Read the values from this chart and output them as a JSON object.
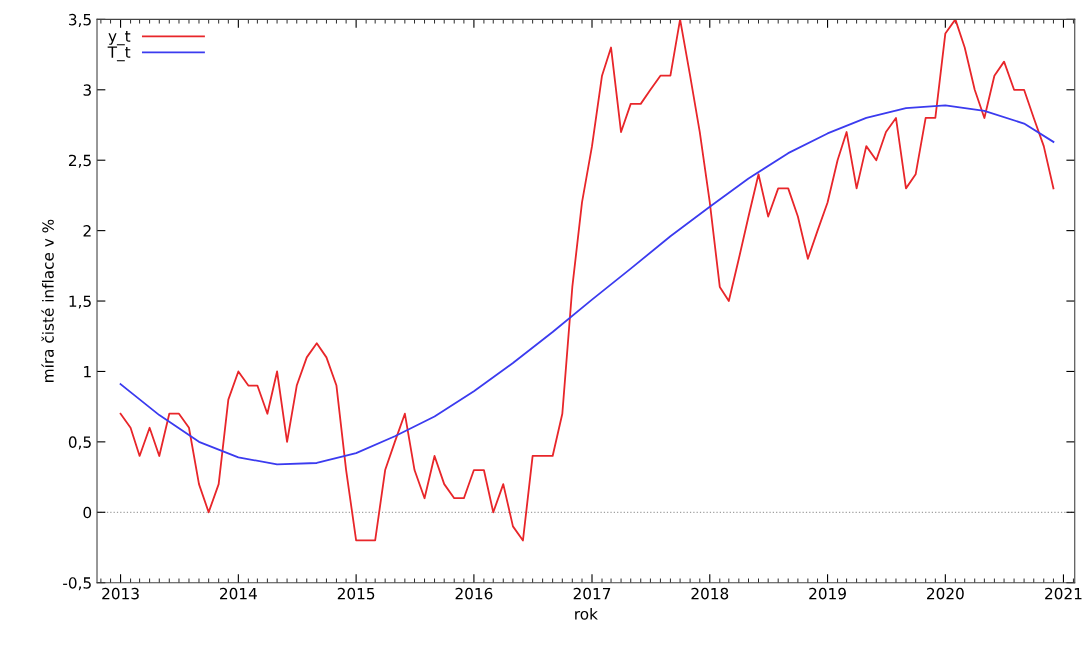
{
  "chart_data": {
    "type": "line",
    "xlabel": "rok",
    "ylabel": "míra čisté inflace v %",
    "xlim": [
      "2012-10-20",
      "2021-02-05"
    ],
    "xticks": [
      {
        "value": "2013-01-01",
        "label": "2013"
      },
      {
        "value": "2014-01-01",
        "label": "2014"
      },
      {
        "value": "2015-01-01",
        "label": "2015"
      },
      {
        "value": "2016-01-01",
        "label": "2016"
      },
      {
        "value": "2017-01-01",
        "label": "2017"
      },
      {
        "value": "2018-01-01",
        "label": "2018"
      },
      {
        "value": "2019-01-01",
        "label": "2019"
      },
      {
        "value": "2020-01-01",
        "label": "2020"
      },
      {
        "value": "2021-01-01",
        "label": "2021"
      }
    ],
    "ylim": [
      -0.5,
      3.5
    ],
    "yticks": [
      {
        "value": -0.5,
        "label": "-0,5"
      },
      0,
      {
        "value": 0.5,
        "label": "0,5"
      },
      1,
      {
        "value": 1.5,
        "label": "1,5"
      },
      2,
      {
        "value": 2.5,
        "label": "2,5"
      },
      3,
      {
        "value": 3.5,
        "label": "3,5"
      }
    ],
    "grid": false,
    "legend": "top left",
    "marker": "none",
    "line_style": "solid",
    "ref_lines": [
      {
        "axis": "y",
        "value": 0,
        "color": "#a0a0a0",
        "line_style": "dotted"
      }
    ],
    "series": [
      {
        "name": "y_t",
        "color": "#e8262a",
        "x": [
          "2013-01",
          "2013-02",
          "2013-03",
          "2013-04",
          "2013-05",
          "2013-06",
          "2013-07",
          "2013-08",
          "2013-09",
          "2013-10",
          "2013-11",
          "2013-12",
          "2014-01",
          "2014-02",
          "2014-03",
          "2014-04",
          "2014-05",
          "2014-06",
          "2014-07",
          "2014-08",
          "2014-09",
          "2014-10",
          "2014-11",
          "2014-12",
          "2015-01",
          "2015-02",
          "2015-03",
          "2015-04",
          "2015-05",
          "2015-06",
          "2015-07",
          "2015-08",
          "2015-09",
          "2015-10",
          "2015-11",
          "2015-12",
          "2016-01",
          "2016-02",
          "2016-03",
          "2016-04",
          "2016-05",
          "2016-06",
          "2016-07",
          "2016-08",
          "2016-09",
          "2016-10",
          "2016-11",
          "2016-12",
          "2017-01",
          "2017-02",
          "2017-03",
          "2017-04",
          "2017-05",
          "2017-06",
          "2017-07",
          "2017-08",
          "2017-09",
          "2017-10",
          "2017-11",
          "2017-12",
          "2018-01",
          "2018-02",
          "2018-03",
          "2018-04",
          "2018-05",
          "2018-06",
          "2018-07",
          "2018-08",
          "2018-09",
          "2018-10",
          "2018-11",
          "2018-12",
          "2019-01",
          "2019-02",
          "2019-03",
          "2019-04",
          "2019-05",
          "2019-06",
          "2019-07",
          "2019-08",
          "2019-09",
          "2019-10",
          "2019-11",
          "2019-12",
          "2020-01",
          "2020-02",
          "2020-03",
          "2020-04",
          "2020-05",
          "2020-06",
          "2020-07",
          "2020-08",
          "2020-09",
          "2020-10",
          "2020-11",
          "2020-12"
        ],
        "values": [
          0.7,
          0.6,
          0.4,
          0.6,
          0.4,
          0.7,
          0.7,
          0.6,
          0.2,
          0.0,
          0.2,
          0.8,
          1.0,
          0.9,
          0.9,
          0.7,
          1.0,
          0.5,
          0.9,
          1.1,
          1.2,
          1.1,
          0.9,
          0.3,
          -0.2,
          -0.2,
          -0.2,
          0.3,
          0.5,
          0.7,
          0.3,
          0.1,
          0.4,
          0.2,
          0.1,
          0.1,
          0.3,
          0.3,
          0.0,
          0.2,
          -0.1,
          -0.2,
          0.4,
          0.4,
          0.4,
          0.7,
          1.6,
          2.2,
          2.6,
          3.1,
          3.3,
          2.7,
          2.9,
          2.9,
          3.0,
          3.1,
          3.1,
          3.5,
          3.1,
          2.7,
          2.2,
          1.6,
          1.5,
          1.8,
          2.1,
          2.4,
          2.1,
          2.3,
          2.3,
          2.1,
          1.8,
          2.0,
          2.2,
          2.5,
          2.7,
          2.3,
          2.6,
          2.5,
          2.7,
          2.8,
          2.3,
          2.4,
          2.8,
          2.8,
          3.4,
          3.5,
          3.3,
          3.0,
          2.8,
          3.1,
          3.2,
          3.0,
          3.0,
          2.8,
          2.6,
          2.3
        ]
      },
      {
        "name": "T_t",
        "color": "#3b3bef",
        "x": [
          "2013-01",
          "2013-05",
          "2013-09",
          "2014-01",
          "2014-05",
          "2014-09",
          "2015-01",
          "2015-05",
          "2015-09",
          "2016-01",
          "2016-05",
          "2016-09",
          "2017-01",
          "2017-05",
          "2017-09",
          "2018-01",
          "2018-05",
          "2018-09",
          "2019-01",
          "2019-05",
          "2019-09",
          "2020-01",
          "2020-05",
          "2020-09",
          "2020-12"
        ],
        "values": [
          0.91,
          0.69,
          0.5,
          0.39,
          0.34,
          0.35,
          0.42,
          0.54,
          0.68,
          0.86,
          1.06,
          1.28,
          1.51,
          1.73,
          1.96,
          2.17,
          2.37,
          2.55,
          2.69,
          2.8,
          2.87,
          2.89,
          2.85,
          2.76,
          2.63
        ]
      }
    ]
  }
}
